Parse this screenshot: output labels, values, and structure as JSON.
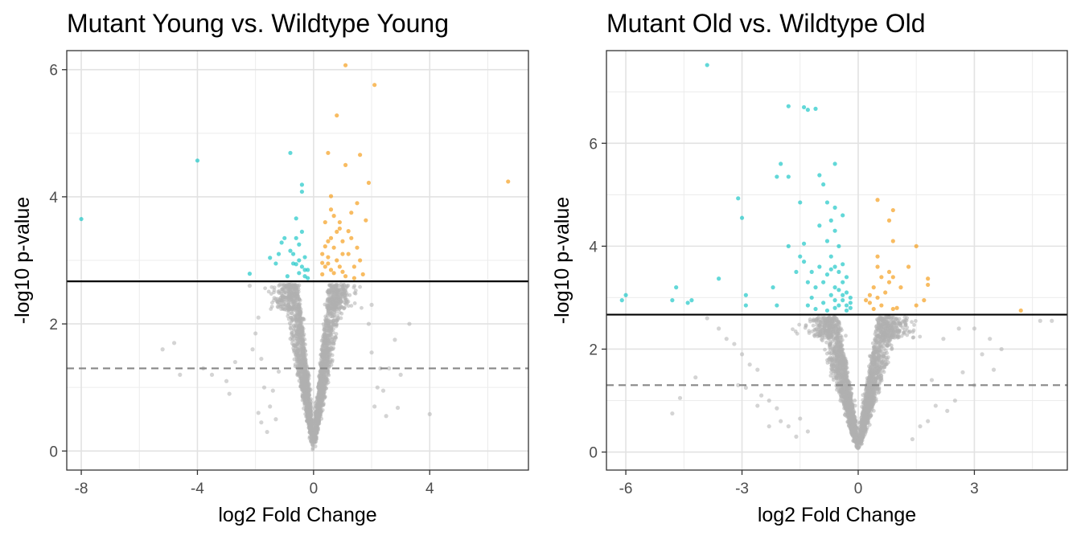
{
  "chart_data": [
    {
      "type": "scatter",
      "title": "Mutant Young vs. Wildtype Young",
      "xlabel": "log2 Fold Change",
      "ylabel": "-log10 p-value",
      "xlim": [
        -8.5,
        7.4
      ],
      "ylim": [
        -0.3,
        6.3
      ],
      "xticks": [
        -8,
        -4,
        0,
        4
      ],
      "yticks": [
        0,
        2,
        4,
        6
      ],
      "grid": true,
      "thresholds": {
        "pvalue_line": 2.67,
        "nominal_line": 1.3
      },
      "colors": {
        "down": "#1fc7c7",
        "up": "#f5a020",
        "ns": "#b0b0b0",
        "solid_line": "#000000",
        "dashed_line": "#888888"
      },
      "series": [
        {
          "group": "down",
          "points": [
            [
              -8.0,
              3.65
            ],
            [
              -4.0,
              4.57
            ],
            [
              -0.8,
              4.69
            ],
            [
              -0.4,
              4.19
            ],
            [
              -0.4,
              4.08
            ],
            [
              -0.6,
              3.66
            ],
            [
              -2.2,
              2.79
            ],
            [
              -1.0,
              3.35
            ],
            [
              -1.1,
              3.28
            ],
            [
              -1.5,
              3.04
            ],
            [
              -1.3,
              2.95
            ],
            [
              -0.6,
              3.35
            ],
            [
              -0.5,
              3.25
            ],
            [
              -0.7,
              3.1
            ],
            [
              -0.5,
              3.0
            ],
            [
              -0.6,
              2.94
            ],
            [
              -0.4,
              2.9
            ],
            [
              -0.3,
              2.85
            ],
            [
              -0.5,
              2.8
            ],
            [
              -0.3,
              2.75
            ],
            [
              -0.2,
              2.72
            ],
            [
              -0.9,
              2.75
            ],
            [
              -0.4,
              3.45
            ],
            [
              -0.3,
              3.05
            ],
            [
              -0.7,
              2.95
            ],
            [
              -0.2,
              2.85
            ],
            [
              -1.2,
              3.1
            ],
            [
              -0.8,
              3.15
            ]
          ]
        },
        {
          "group": "up",
          "points": [
            [
              1.1,
              6.07
            ],
            [
              2.1,
              5.76
            ],
            [
              0.8,
              5.28
            ],
            [
              0.5,
              4.69
            ],
            [
              1.6,
              4.66
            ],
            [
              1.1,
              4.5
            ],
            [
              1.9,
              4.22
            ],
            [
              6.7,
              4.24
            ],
            [
              0.6,
              4.01
            ],
            [
              0.6,
              3.8
            ],
            [
              0.4,
              3.6
            ],
            [
              1.5,
              3.9
            ],
            [
              1.3,
              3.75
            ],
            [
              1.8,
              3.63
            ],
            [
              0.9,
              3.5
            ],
            [
              1.2,
              3.46
            ],
            [
              0.5,
              3.3
            ],
            [
              0.7,
              3.2
            ],
            [
              1.0,
              3.1
            ],
            [
              0.8,
              3.0
            ],
            [
              0.5,
              2.95
            ],
            [
              0.4,
              2.9
            ],
            [
              0.6,
              2.85
            ],
            [
              0.7,
              2.8
            ],
            [
              0.3,
              2.78
            ],
            [
              1.1,
              2.75
            ],
            [
              1.4,
              2.72
            ],
            [
              0.9,
              2.9
            ],
            [
              1.5,
              3.2
            ],
            [
              0.3,
              3.1
            ],
            [
              0.6,
              3.35
            ],
            [
              1.3,
              3.35
            ],
            [
              0.8,
              3.45
            ],
            [
              1.6,
              3.0
            ],
            [
              1.0,
              2.82
            ],
            [
              0.5,
              3.05
            ],
            [
              0.9,
              3.6
            ],
            [
              1.4,
              2.9
            ],
            [
              0.3,
              2.96
            ],
            [
              1.7,
              2.78
            ],
            [
              0.7,
              3.7
            ],
            [
              1.2,
              3.1
            ],
            [
              0.4,
              3.22
            ],
            [
              1.0,
              3.3
            ]
          ]
        },
        {
          "group": "ns",
          "points": [
            [
              -5.2,
              1.6
            ],
            [
              -4.8,
              1.7
            ],
            [
              -4.6,
              1.2
            ],
            [
              -3.8,
              1.3
            ],
            [
              -3.5,
              1.2
            ],
            [
              -3.0,
              1.1
            ],
            [
              -2.9,
              0.9
            ],
            [
              -2.7,
              1.4
            ],
            [
              -2.1,
              1.6
            ],
            [
              -2.0,
              1.85
            ],
            [
              -1.9,
              2.1
            ],
            [
              -1.8,
              1.45
            ],
            [
              -1.7,
              1.0
            ],
            [
              -1.8,
              0.45
            ],
            [
              -1.5,
              0.7
            ],
            [
              -1.3,
              0.5
            ],
            [
              -1.6,
              0.3
            ],
            [
              -1.9,
              0.6
            ],
            [
              3.3,
              2.0
            ],
            [
              2.8,
              1.75
            ],
            [
              2.6,
              1.3
            ],
            [
              2.9,
              0.68
            ],
            [
              3.0,
              1.2
            ],
            [
              4.0,
              0.58
            ],
            [
              2.4,
              0.95
            ],
            [
              2.2,
              1.0
            ],
            [
              2.0,
              1.55
            ],
            [
              1.9,
              2.0
            ],
            [
              2.0,
              2.3
            ],
            [
              -2.2,
              2.6
            ],
            [
              -1.4,
              0.95
            ],
            [
              -1.2,
              1.25
            ],
            [
              2.3,
              1.3
            ],
            [
              2.1,
              0.7
            ],
            [
              2.5,
              0.55
            ]
          ]
        }
      ]
    },
    {
      "type": "scatter",
      "title": "Mutant Old vs. Wildtype Old",
      "xlabel": "log2 Fold Change",
      "ylabel": "-log10 p-value",
      "xlim": [
        -6.5,
        5.4
      ],
      "ylim": [
        -0.35,
        7.8
      ],
      "xticks": [
        -6,
        -3,
        0,
        3
      ],
      "yticks": [
        0,
        2,
        4,
        6
      ],
      "grid": true,
      "thresholds": {
        "pvalue_line": 2.67,
        "nominal_line": 1.3
      },
      "colors": {
        "down": "#1fc7c7",
        "up": "#f5a020",
        "ns": "#b0b0b0",
        "solid_line": "#000000",
        "dashed_line": "#888888"
      },
      "series": [
        {
          "group": "down",
          "points": [
            [
              -3.9,
              7.52
            ],
            [
              -1.8,
              6.72
            ],
            [
              -1.4,
              6.7
            ],
            [
              -1.3,
              6.65
            ],
            [
              -1.1,
              6.67
            ],
            [
              -2.0,
              5.6
            ],
            [
              -2.1,
              5.35
            ],
            [
              -1.8,
              5.35
            ],
            [
              -1.0,
              5.38
            ],
            [
              -0.6,
              5.6
            ],
            [
              -0.9,
              5.2
            ],
            [
              -3.1,
              4.93
            ],
            [
              -3.0,
              4.55
            ],
            [
              -1.5,
              4.85
            ],
            [
              -0.8,
              4.85
            ],
            [
              -0.6,
              4.75
            ],
            [
              -0.4,
              4.6
            ],
            [
              -4.7,
              3.2
            ],
            [
              -4.3,
              2.95
            ],
            [
              -3.6,
              3.37
            ],
            [
              -6.0,
              3.05
            ],
            [
              -6.1,
              2.95
            ],
            [
              -4.8,
              2.95
            ],
            [
              -4.4,
              2.9
            ],
            [
              -2.9,
              3.05
            ],
            [
              -2.9,
              2.85
            ],
            [
              -2.2,
              3.2
            ],
            [
              -2.1,
              2.85
            ],
            [
              -1.3,
              2.85
            ],
            [
              -1.2,
              3.5
            ],
            [
              -1.5,
              3.8
            ],
            [
              -1.8,
              4.0
            ],
            [
              -1.4,
              4.05
            ],
            [
              -1.0,
              4.4
            ],
            [
              -0.8,
              4.1
            ],
            [
              -0.7,
              3.8
            ],
            [
              -0.6,
              3.6
            ],
            [
              -0.5,
              3.5
            ],
            [
              -0.4,
              3.3
            ],
            [
              -0.3,
              3.1
            ],
            [
              -0.4,
              2.95
            ],
            [
              -0.5,
              2.85
            ],
            [
              -0.6,
              2.8
            ],
            [
              -0.3,
              2.75
            ],
            [
              -0.2,
              2.9
            ],
            [
              -0.7,
              3.05
            ],
            [
              -0.9,
              3.3
            ],
            [
              -1.0,
              3.6
            ],
            [
              -1.1,
              3.2
            ],
            [
              -1.2,
              3.0
            ],
            [
              -0.9,
              2.9
            ],
            [
              -0.8,
              2.75
            ],
            [
              -0.6,
              3.2
            ],
            [
              -0.3,
              3.4
            ],
            [
              -0.4,
              3.65
            ],
            [
              -0.5,
              4.0
            ],
            [
              -0.6,
              4.3
            ],
            [
              -0.7,
              4.5
            ],
            [
              -1.3,
              3.3
            ],
            [
              -1.6,
              3.5
            ],
            [
              -1.1,
              2.78
            ],
            [
              -0.2,
              2.8
            ],
            [
              -0.5,
              3.15
            ],
            [
              -0.8,
              3.45
            ],
            [
              -0.3,
              2.85
            ],
            [
              -1.4,
              3.7
            ],
            [
              -0.6,
              2.95
            ],
            [
              -0.4,
              3.05
            ],
            [
              -0.2,
              3.0
            ],
            [
              -0.7,
              3.55
            ]
          ]
        },
        {
          "group": "up",
          "points": [
            [
              0.5,
              4.9
            ],
            [
              0.9,
              4.7
            ],
            [
              0.8,
              4.5
            ],
            [
              0.9,
              4.1
            ],
            [
              1.5,
              4.0
            ],
            [
              0.5,
              3.8
            ],
            [
              1.3,
              3.6
            ],
            [
              0.5,
              3.6
            ],
            [
              0.8,
              3.5
            ],
            [
              0.9,
              3.4
            ],
            [
              1.8,
              3.37
            ],
            [
              1.8,
              3.25
            ],
            [
              0.6,
              3.4
            ],
            [
              0.4,
              3.2
            ],
            [
              0.7,
              3.1
            ],
            [
              0.5,
              3.0
            ],
            [
              0.3,
              2.9
            ],
            [
              0.2,
              2.95
            ],
            [
              1.0,
              2.8
            ],
            [
              0.9,
              2.78
            ],
            [
              1.7,
              2.95
            ],
            [
              0.6,
              2.85
            ],
            [
              0.4,
              2.78
            ],
            [
              1.5,
              2.85
            ],
            [
              4.2,
              2.75
            ],
            [
              0.3,
              3.05
            ],
            [
              0.8,
              3.3
            ],
            [
              1.1,
              3.2
            ]
          ]
        },
        {
          "group": "ns",
          "points": [
            [
              -4.8,
              0.75
            ],
            [
              -4.6,
              1.05
            ],
            [
              -4.2,
              1.45
            ],
            [
              -3.9,
              2.6
            ],
            [
              -3.6,
              2.4
            ],
            [
              -3.4,
              2.2
            ],
            [
              -3.2,
              2.1
            ],
            [
              -3.0,
              1.9
            ],
            [
              -2.8,
              1.7
            ],
            [
              -2.6,
              1.6
            ],
            [
              -2.5,
              1.1
            ],
            [
              -2.3,
              1.0
            ],
            [
              -2.1,
              0.85
            ],
            [
              -2.0,
              0.6
            ],
            [
              -1.8,
              0.5
            ],
            [
              -1.6,
              0.3
            ],
            [
              -2.3,
              0.5
            ],
            [
              -2.6,
              0.9
            ],
            [
              -2.9,
              1.25
            ],
            [
              -3.1,
              1.3
            ],
            [
              -1.5,
              0.65
            ],
            [
              -1.3,
              0.4
            ],
            [
              3.7,
              2.0
            ],
            [
              3.5,
              1.6
            ],
            [
              3.2,
              1.9
            ],
            [
              3.0,
              1.3
            ],
            [
              2.7,
              1.55
            ],
            [
              2.5,
              1.0
            ],
            [
              2.3,
              0.8
            ],
            [
              2.0,
              0.9
            ],
            [
              1.9,
              1.4
            ],
            [
              1.8,
              0.6
            ],
            [
              1.6,
              0.5
            ],
            [
              1.4,
              0.25
            ],
            [
              3.0,
              2.4
            ],
            [
              3.4,
              2.2
            ],
            [
              4.7,
              2.55
            ],
            [
              5.0,
              2.55
            ],
            [
              2.2,
              2.2
            ],
            [
              2.6,
              2.4
            ]
          ]
        }
      ]
    }
  ]
}
